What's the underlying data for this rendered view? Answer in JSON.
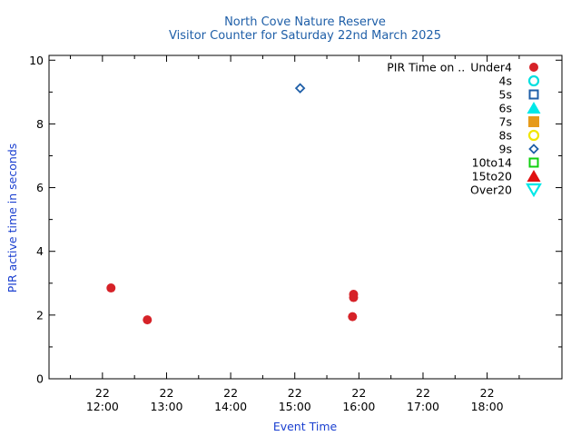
{
  "chart_data": {
    "type": "scatter",
    "title": "North Cove Nature Reserve",
    "subtitle": "Visitor Counter for Saturday 22nd March 2025",
    "xlabel": "Event Time",
    "ylabel": "PIR active time in seconds",
    "xlim": [
      "11:10",
      "19:10"
    ],
    "ylim": [
      0,
      10.15
    ],
    "grid": false,
    "legend_placement": "top-right",
    "legend_title": "PIR Time on ..",
    "x_ticks": [
      {
        "top": "22",
        "bottom": "12:00",
        "time": "12:00"
      },
      {
        "top": "22",
        "bottom": "13:00",
        "time": "13:00"
      },
      {
        "top": "22",
        "bottom": "14:00",
        "time": "14:00"
      },
      {
        "top": "22",
        "bottom": "15:00",
        "time": "15:00"
      },
      {
        "top": "22",
        "bottom": "16:00",
        "time": "16:00"
      },
      {
        "top": "22",
        "bottom": "17:00",
        "time": "17:00"
      },
      {
        "top": "22",
        "bottom": "18:00",
        "time": "18:00"
      }
    ],
    "y_ticks": [
      0,
      2,
      4,
      6,
      8,
      10
    ],
    "series": [
      {
        "name": "Under4",
        "marker": "circle-filled",
        "color": "#d62228",
        "points": [
          {
            "x": "12:08",
            "y": 2.85
          },
          {
            "x": "12:42",
            "y": 1.85
          },
          {
            "x": "15:55",
            "y": 2.65
          },
          {
            "x": "15:55",
            "y": 2.55
          },
          {
            "x": "15:54",
            "y": 1.95
          }
        ]
      },
      {
        "name": "4s",
        "marker": "circle-open",
        "color": "#00e0e0",
        "points": []
      },
      {
        "name": "5s",
        "marker": "square-open",
        "color": "#1f5fa8",
        "points": []
      },
      {
        "name": "6s",
        "marker": "triangle-filled",
        "color": "#00e8e8",
        "points": []
      },
      {
        "name": "7s",
        "marker": "square-filled",
        "color": "#e69a1a",
        "points": []
      },
      {
        "name": "8s",
        "marker": "circle-open",
        "color": "#f0e600",
        "points": []
      },
      {
        "name": "9s",
        "marker": "diamond-open",
        "color": "#1f5fa8",
        "points": [
          {
            "x": "15:05",
            "y": 9.12
          }
        ]
      },
      {
        "name": "10to14",
        "marker": "square-open",
        "color": "#10d010",
        "points": []
      },
      {
        "name": "15to20",
        "marker": "triangle-filled",
        "color": "#e01010",
        "points": []
      },
      {
        "name": "Over20",
        "marker": "triangle-down-open",
        "color": "#00e8e8",
        "points": []
      }
    ]
  }
}
